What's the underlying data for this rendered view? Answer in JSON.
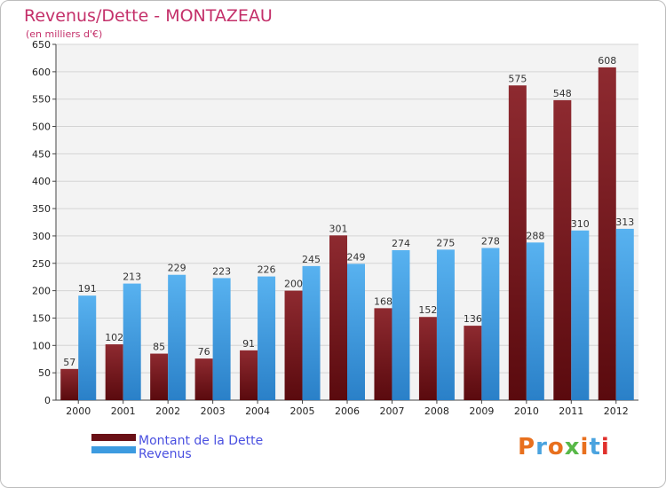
{
  "title": "Revenus/Dette - MONTAZEAU",
  "subtitle": "(en milliers d'€)",
  "logo": "Proxiti",
  "colors": {
    "dette": "#7a1a1f",
    "revenus": "#3d9be0",
    "title": "#c4306a",
    "legend": "#4a50e0"
  },
  "chart_data": {
    "type": "bar",
    "title": "Revenus/Dette - MONTAZEAU",
    "ylabel": "(en milliers d'€)",
    "categories": [
      "2000",
      "2001",
      "2002",
      "2003",
      "2004",
      "2005",
      "2006",
      "2007",
      "2008",
      "2009",
      "2010",
      "2011",
      "2012"
    ],
    "series": [
      {
        "name": "Montant de la Dette",
        "values": [
          57,
          102,
          85,
          76,
          91,
          200,
          301,
          168,
          152,
          136,
          575,
          548,
          608
        ]
      },
      {
        "name": "Revenus",
        "values": [
          191,
          213,
          229,
          223,
          226,
          245,
          249,
          274,
          275,
          278,
          288,
          310,
          313
        ]
      }
    ],
    "ylim": [
      0,
      650
    ],
    "yticks": [
      0,
      50,
      100,
      150,
      200,
      250,
      300,
      350,
      400,
      450,
      500,
      550,
      600,
      650
    ],
    "grid": true,
    "legend": "bottom-left"
  }
}
